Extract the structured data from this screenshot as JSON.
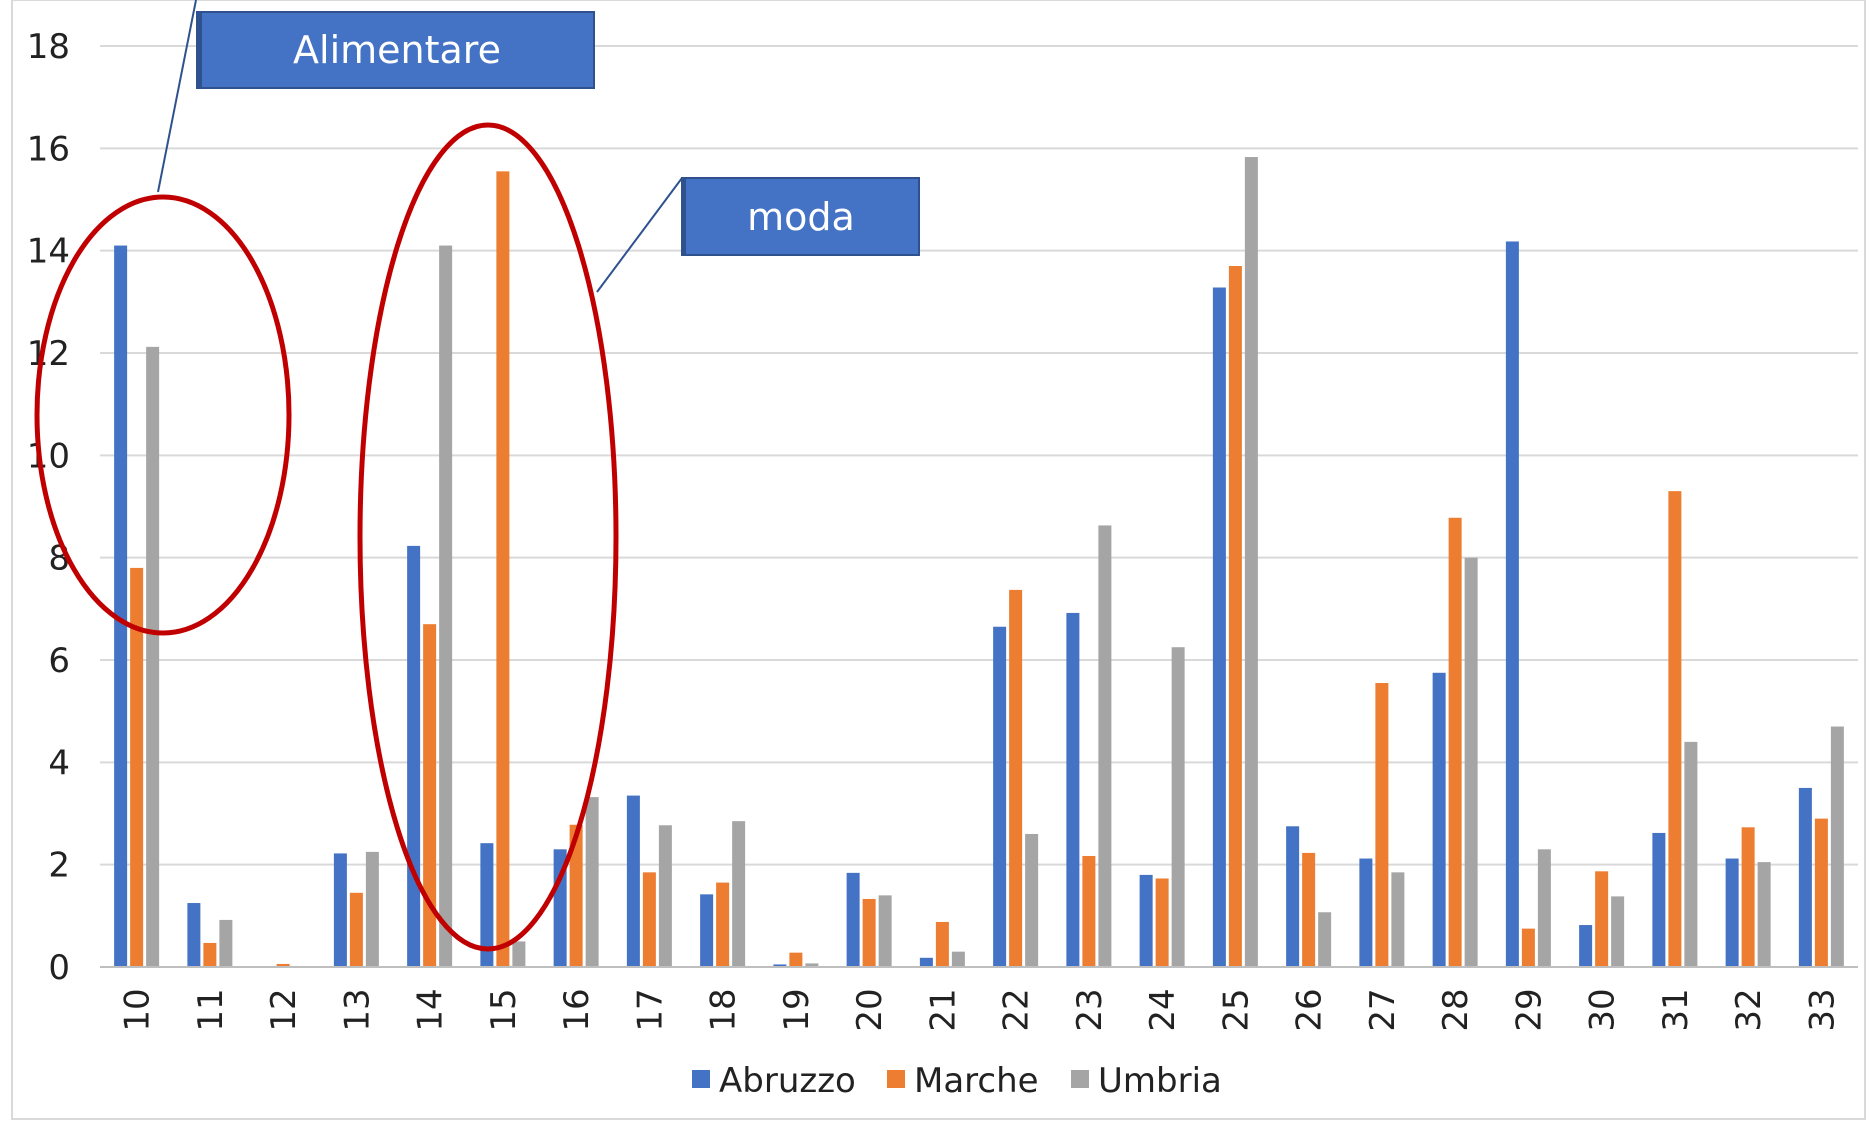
{
  "chart_data": {
    "type": "bar",
    "categories": [
      "10",
      "11",
      "12",
      "13",
      "14",
      "15",
      "16",
      "17",
      "18",
      "19",
      "20",
      "21",
      "22",
      "23",
      "24",
      "25",
      "26",
      "27",
      "28",
      "29",
      "30",
      "31",
      "32",
      "33"
    ],
    "series": [
      {
        "name": "Abruzzo",
        "color": "#4472C4",
        "values": [
          14.1,
          1.25,
          0,
          2.22,
          8.23,
          2.42,
          2.3,
          3.35,
          1.42,
          0.05,
          1.84,
          0.18,
          6.65,
          6.92,
          1.8,
          13.28,
          2.75,
          2.12,
          5.75,
          14.18,
          0.82,
          2.62,
          2.12,
          3.5
        ]
      },
      {
        "name": "Marche",
        "color": "#ED7D31",
        "values": [
          7.8,
          0.47,
          0.06,
          1.45,
          6.7,
          15.55,
          2.78,
          1.85,
          1.65,
          0.28,
          1.33,
          0.88,
          7.37,
          2.17,
          1.73,
          13.7,
          2.23,
          5.55,
          8.78,
          0.75,
          1.87,
          9.3,
          2.73,
          2.9
        ]
      },
      {
        "name": "Umbria",
        "color": "#A5A5A5",
        "values": [
          12.12,
          0.92,
          0,
          2.25,
          14.1,
          0.5,
          3.32,
          2.77,
          2.85,
          0.07,
          1.4,
          0.3,
          2.6,
          8.63,
          6.25,
          15.83,
          1.07,
          1.85,
          8.0,
          2.3,
          1.38,
          4.4,
          2.05,
          4.7
        ]
      }
    ],
    "ylim": [
      0,
      18
    ],
    "yticks": [
      0,
      2,
      4,
      6,
      8,
      10,
      12,
      14,
      16,
      18
    ],
    "grid": true,
    "legend": "bottom",
    "annotations": [
      {
        "label": "Alimentare",
        "categories": [
          "10",
          "11"
        ]
      },
      {
        "label": "moda",
        "categories": [
          "14",
          "15",
          "16"
        ]
      }
    ],
    "annotation_style": {
      "ellipse_color": "#C00000",
      "box_color": "#4472C4",
      "box_border": "#2F528F",
      "leader_color": "#2F528F"
    }
  }
}
